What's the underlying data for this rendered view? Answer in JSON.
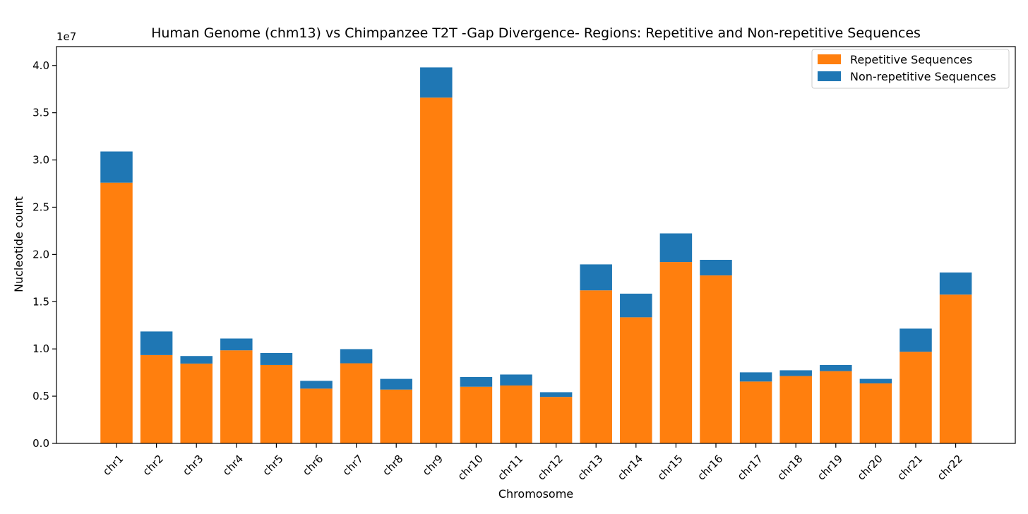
{
  "chart_data": {
    "type": "bar",
    "stacked": true,
    "title": "Human Genome (chm13) vs Chimpanzee T2T -Gap Divergence- Regions: Repetitive and Non-repetitive Sequences",
    "xlabel": "Chromosome",
    "ylabel": "Nucleotide count",
    "scale_label": "1e7",
    "y_scale": 10000000,
    "ylim": [
      0,
      42000000
    ],
    "y_ticks": [
      0,
      5000000,
      10000000,
      15000000,
      20000000,
      25000000,
      30000000,
      35000000,
      40000000
    ],
    "y_tick_labels": [
      "0.0",
      "0.5",
      "1.0",
      "1.5",
      "2.0",
      "2.5",
      "3.0",
      "3.5",
      "4.0"
    ],
    "grid": false,
    "legend_position": "top-right",
    "categories": [
      "chr1",
      "chr2",
      "chr3",
      "chr4",
      "chr5",
      "chr6",
      "chr7",
      "chr8",
      "chr9",
      "chr10",
      "chr11",
      "chr12",
      "chr13",
      "chr14",
      "chr15",
      "chr16",
      "chr17",
      "chr18",
      "chr19",
      "chr20",
      "chr21",
      "chr22"
    ],
    "series": [
      {
        "name": "Repetitive Sequences",
        "color": "#ff7f0e",
        "values": [
          27600000,
          9350000,
          8450000,
          9850000,
          8300000,
          5800000,
          8480000,
          5700000,
          36600000,
          6000000,
          6130000,
          4920000,
          16200000,
          13350000,
          19200000,
          17780000,
          6550000,
          7130000,
          7650000,
          6350000,
          9700000,
          15750000
        ]
      },
      {
        "name": "Non-repetitive Sequences",
        "color": "#1f77b4",
        "values": [
          3300000,
          2500000,
          800000,
          1250000,
          1270000,
          820000,
          1500000,
          1130000,
          3200000,
          1030000,
          1160000,
          500000,
          2750000,
          2500000,
          3030000,
          1650000,
          970000,
          610000,
          650000,
          480000,
          2450000,
          2340000
        ]
      }
    ]
  }
}
